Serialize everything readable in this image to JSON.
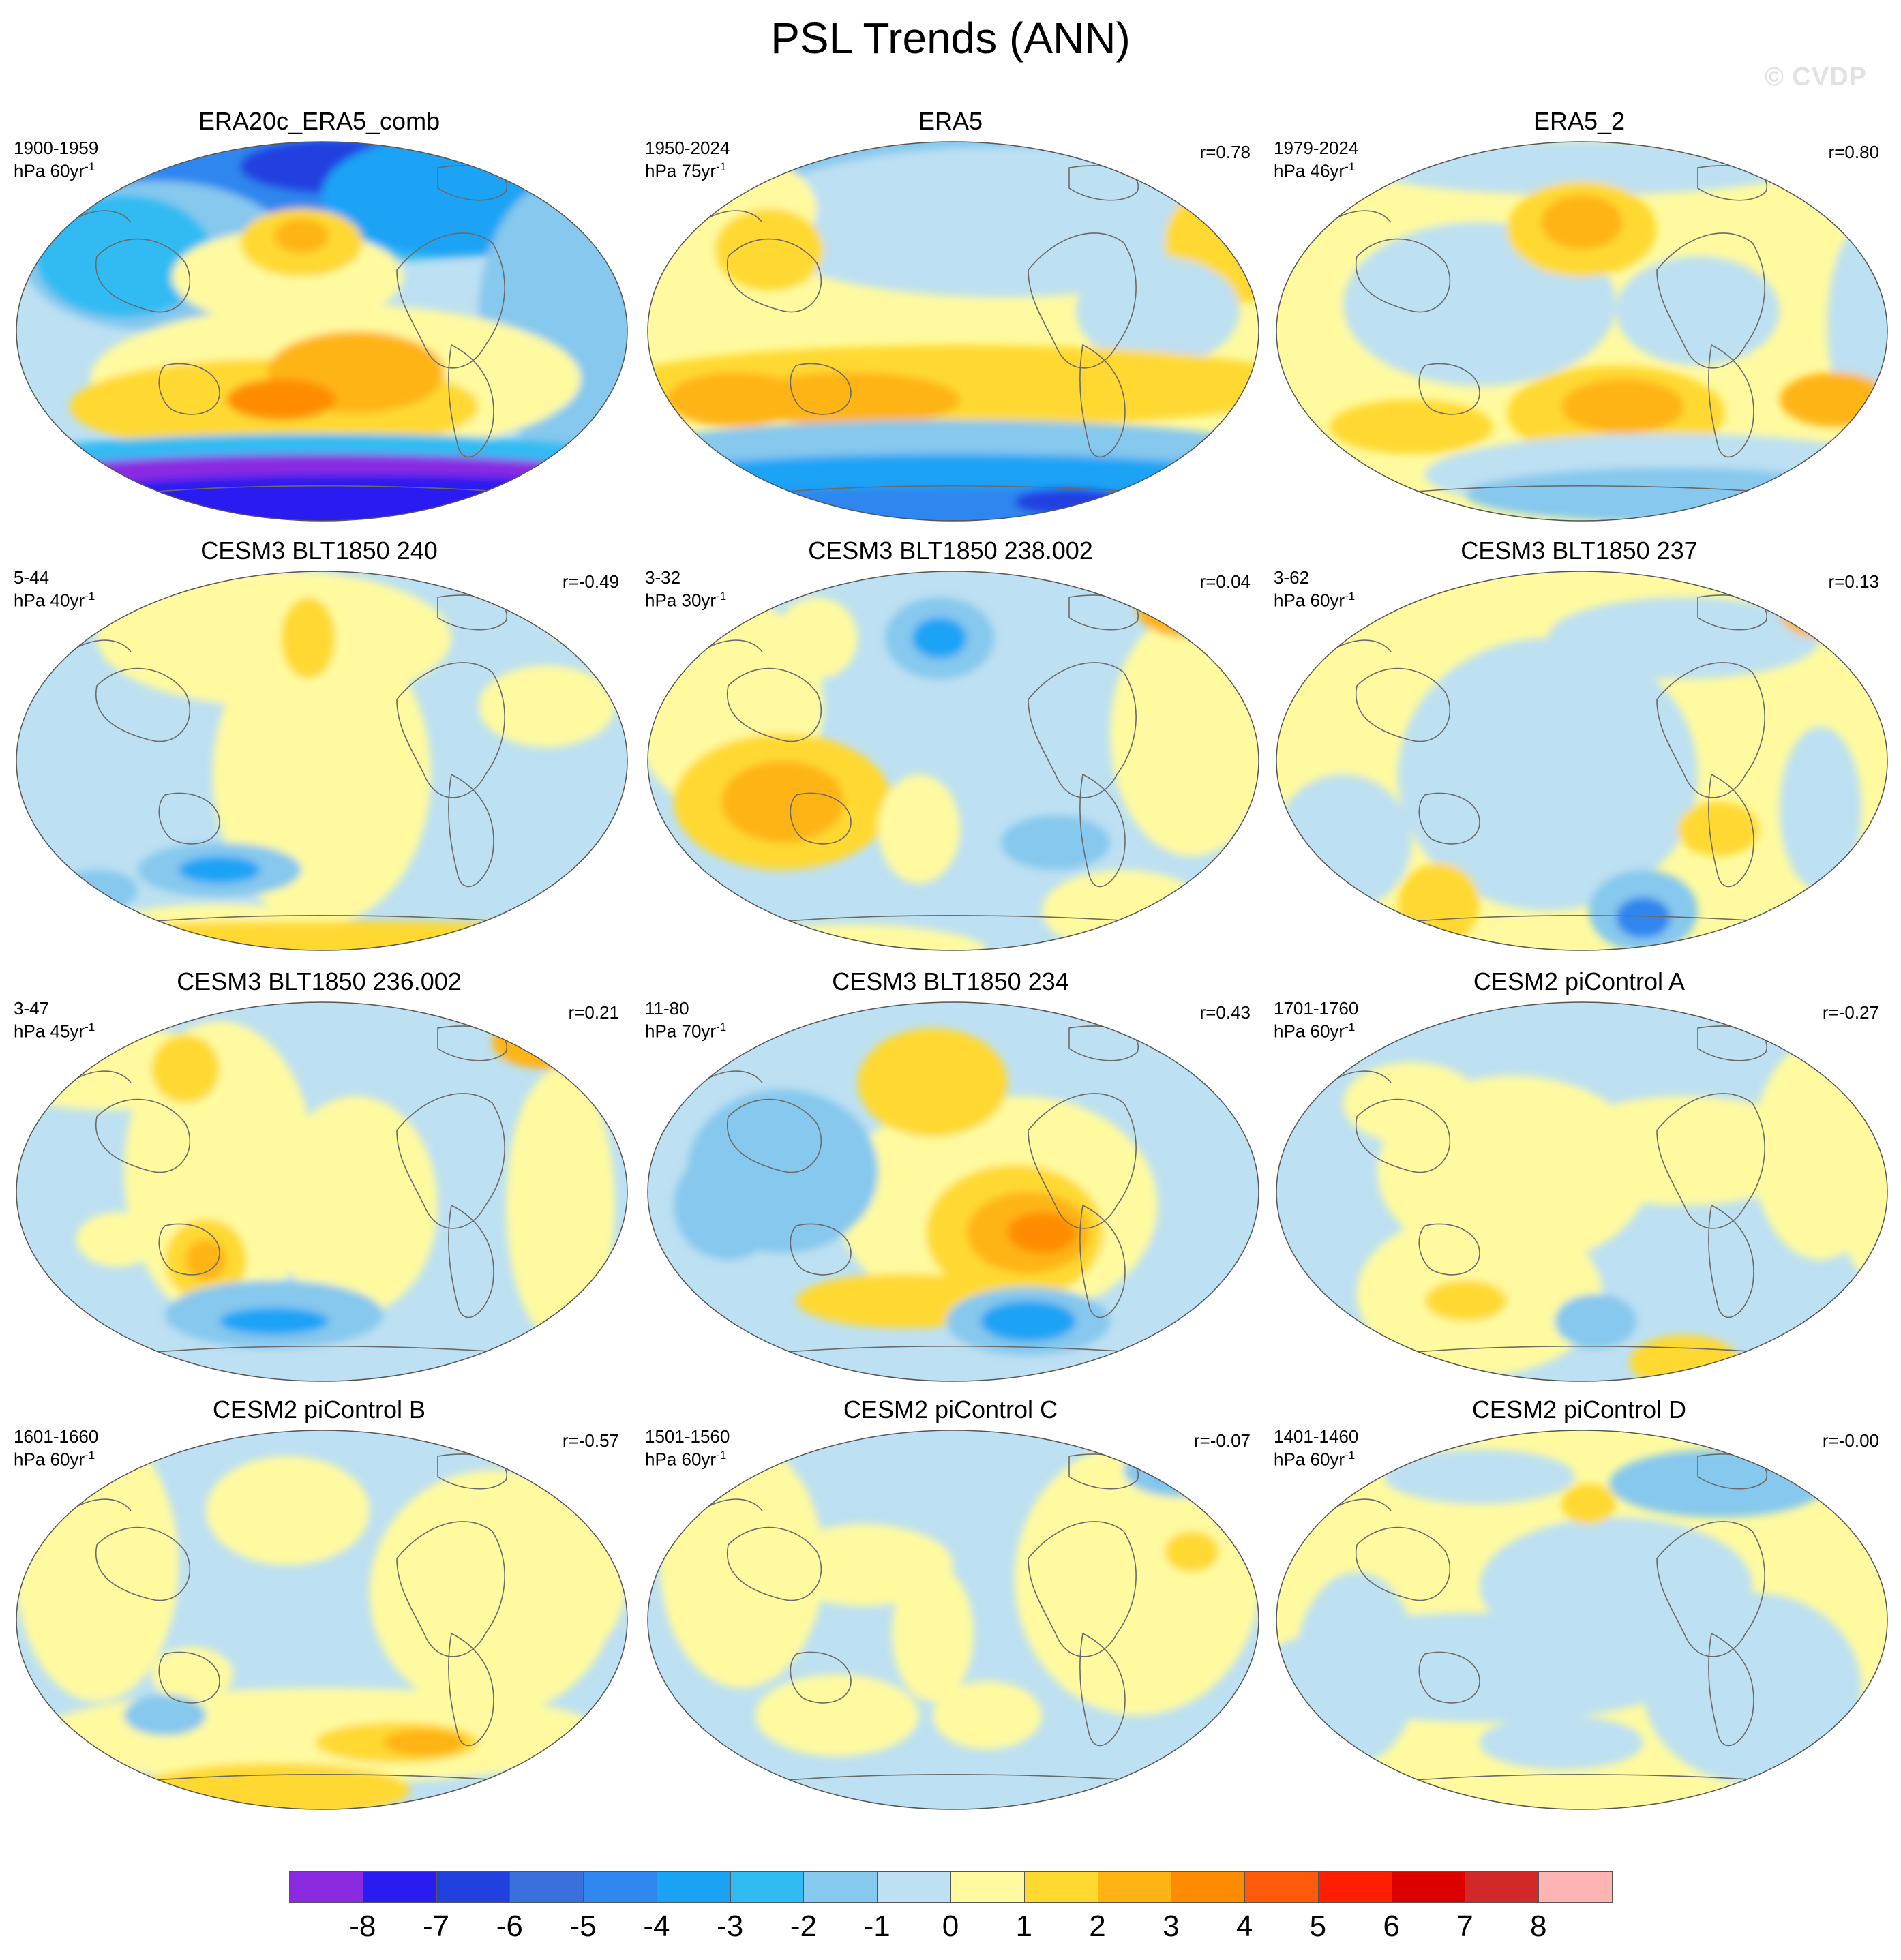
{
  "title": "PSL Trends (ANN)",
  "watermark": "© CVDP",
  "panels": [
    {
      "title": "ERA20c_ERA5_comb",
      "period": "1900-1959",
      "units_base": "hPa 60yr",
      "units_exp": "-1",
      "corr": "",
      "style": "obs1"
    },
    {
      "title": "ERA5",
      "period": "1950-2024",
      "units_base": "hPa 75yr",
      "units_exp": "-1",
      "corr": "r=0.78",
      "style": "obs2"
    },
    {
      "title": "ERA5_2",
      "period": "1979-2024",
      "units_base": "hPa 46yr",
      "units_exp": "-1",
      "corr": "r=0.80",
      "style": "obs3"
    },
    {
      "title": "CESM3 BLT1850 240",
      "period": "5-44",
      "units_base": "hPa 40yr",
      "units_exp": "-1",
      "corr": "r=-0.49",
      "style": "m1"
    },
    {
      "title": "CESM3 BLT1850 238.002",
      "period": "3-32",
      "units_base": "hPa 30yr",
      "units_exp": "-1",
      "corr": "r=0.04",
      "style": "m2"
    },
    {
      "title": "CESM3 BLT1850 237",
      "period": "3-62",
      "units_base": "hPa 60yr",
      "units_exp": "-1",
      "corr": "r=0.13",
      "style": "m3"
    },
    {
      "title": "CESM3 BLT1850 236.002",
      "period": "3-47",
      "units_base": "hPa 45yr",
      "units_exp": "-1",
      "corr": "r=0.21",
      "style": "m4"
    },
    {
      "title": "CESM3 BLT1850 234",
      "period": "11-80",
      "units_base": "hPa 70yr",
      "units_exp": "-1",
      "corr": "r=0.43",
      "style": "m5"
    },
    {
      "title": "CESM2 piControl A",
      "period": "1701-1760",
      "units_base": "hPa 60yr",
      "units_exp": "-1",
      "corr": "r=-0.27",
      "style": "m6"
    },
    {
      "title": "CESM2 piControl B",
      "period": "1601-1660",
      "units_base": "hPa 60yr",
      "units_exp": "-1",
      "corr": "r=-0.57",
      "style": "m7"
    },
    {
      "title": "CESM2 piControl C",
      "period": "1501-1560",
      "units_base": "hPa 60yr",
      "units_exp": "-1",
      "corr": "r=-0.07",
      "style": "m8"
    },
    {
      "title": "CESM2 piControl D",
      "period": "1401-1460",
      "units_base": "hPa 60yr",
      "units_exp": "-1",
      "corr": "r=-0.00",
      "style": "m9"
    }
  ],
  "colorbar": {
    "colors": [
      "#8a2be2",
      "#2a1bf0",
      "#2040e0",
      "#3a6fdc",
      "#2f86ee",
      "#1aa3f5",
      "#31bbf3",
      "#86c8ee",
      "#bde0f2",
      "#fffaa0",
      "#ffd932",
      "#ffb414",
      "#ff8c00",
      "#ff5a0a",
      "#ff1e00",
      "#dc0000",
      "#d22828",
      "#ffb4b4"
    ],
    "labels": [
      "-8",
      "-7",
      "-6",
      "-5",
      "-4",
      "-3",
      "-2",
      "-1",
      "0",
      "1",
      "2",
      "3",
      "4",
      "5",
      "6",
      "7",
      "8"
    ]
  }
}
